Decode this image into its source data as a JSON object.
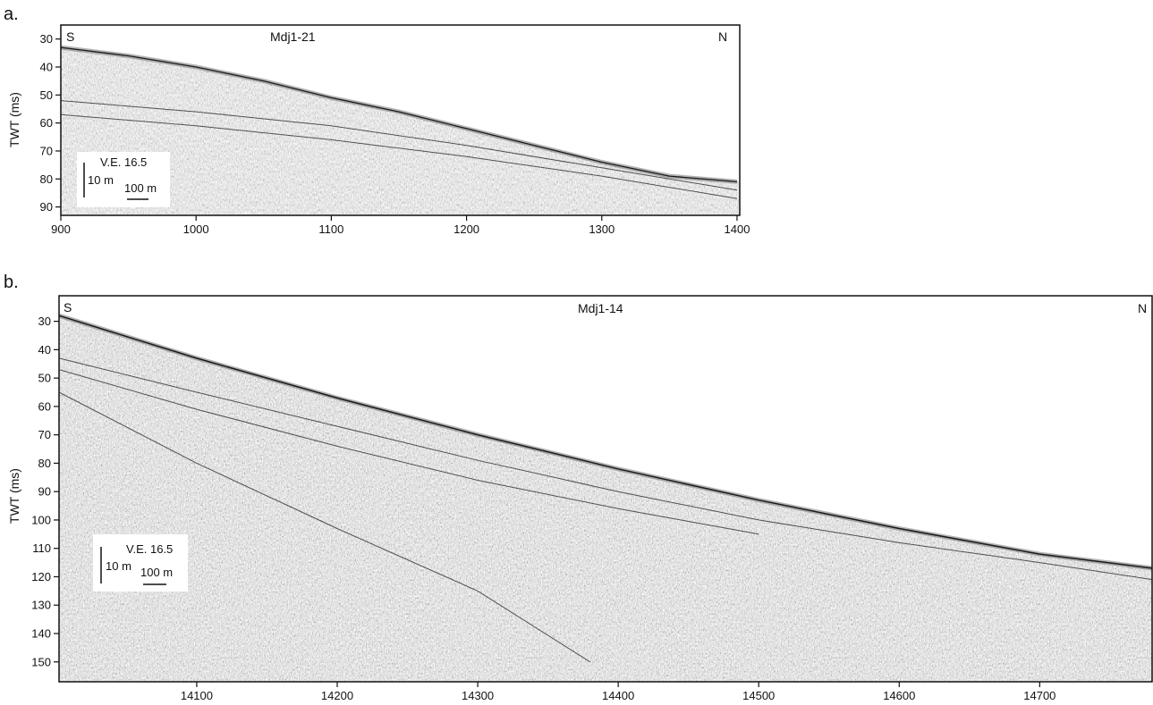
{
  "chart_data": [
    {
      "type": "seismic-profile",
      "panel_label": "a.",
      "profile_name": "Mdj1-21",
      "left_label": "S",
      "right_label": "N",
      "ylabel": "TWT (ms)",
      "xlabel": "",
      "xlim": [
        900,
        1402
      ],
      "ylim": [
        25,
        93
      ],
      "x_ticks": [
        900,
        1000,
        1100,
        1200,
        1300,
        1400
      ],
      "y_ticks": [
        30,
        40,
        50,
        60,
        70,
        80,
        90
      ],
      "scale_box": {
        "ve": "V.E. 16.5",
        "vertical": "10 m",
        "horizontal": "100 m"
      },
      "seafloor": [
        [
          900,
          33
        ],
        [
          950,
          36
        ],
        [
          1000,
          40
        ],
        [
          1050,
          45
        ],
        [
          1100,
          51
        ],
        [
          1150,
          56
        ],
        [
          1200,
          62
        ],
        [
          1250,
          68
        ],
        [
          1300,
          74
        ],
        [
          1350,
          79
        ],
        [
          1400,
          81
        ]
      ],
      "reflectors": [
        [
          [
            900,
            52
          ],
          [
            1000,
            56
          ],
          [
            1100,
            61
          ],
          [
            1200,
            68
          ],
          [
            1300,
            76
          ],
          [
            1400,
            84
          ]
        ],
        [
          [
            900,
            57
          ],
          [
            1000,
            61
          ],
          [
            1100,
            66
          ],
          [
            1200,
            72
          ],
          [
            1300,
            79
          ],
          [
            1400,
            87
          ]
        ]
      ]
    },
    {
      "type": "seismic-profile",
      "panel_label": "b.",
      "profile_name": "Mdj1-14",
      "left_label": "S",
      "right_label": "N",
      "ylabel": "TWT (ms)",
      "xlabel": "",
      "xlim": [
        14002,
        14780
      ],
      "ylim": [
        21,
        157
      ],
      "x_ticks": [
        14100,
        14200,
        14300,
        14400,
        14500,
        14600,
        14700
      ],
      "y_ticks": [
        30,
        40,
        50,
        60,
        70,
        80,
        90,
        100,
        110,
        120,
        130,
        140,
        150
      ],
      "scale_box": {
        "ve": "V.E. 16.5",
        "vertical": "10 m",
        "horizontal": "100 m"
      },
      "seafloor": [
        [
          14002,
          28
        ],
        [
          14100,
          43
        ],
        [
          14200,
          57
        ],
        [
          14300,
          70
        ],
        [
          14400,
          82
        ],
        [
          14500,
          93
        ],
        [
          14600,
          103
        ],
        [
          14700,
          112
        ],
        [
          14780,
          117
        ]
      ],
      "reflectors": [
        [
          [
            14002,
            43
          ],
          [
            14100,
            55
          ],
          [
            14200,
            67
          ],
          [
            14300,
            79
          ],
          [
            14400,
            90
          ],
          [
            14500,
            100
          ],
          [
            14600,
            108
          ],
          [
            14700,
            115
          ],
          [
            14780,
            121
          ]
        ],
        [
          [
            14002,
            47
          ],
          [
            14100,
            61
          ],
          [
            14200,
            74
          ],
          [
            14300,
            86
          ],
          [
            14400,
            96
          ],
          [
            14500,
            105
          ]
        ],
        [
          [
            14002,
            55
          ],
          [
            14100,
            80
          ],
          [
            14200,
            103
          ],
          [
            14300,
            125
          ],
          [
            14380,
            150
          ]
        ]
      ]
    }
  ]
}
